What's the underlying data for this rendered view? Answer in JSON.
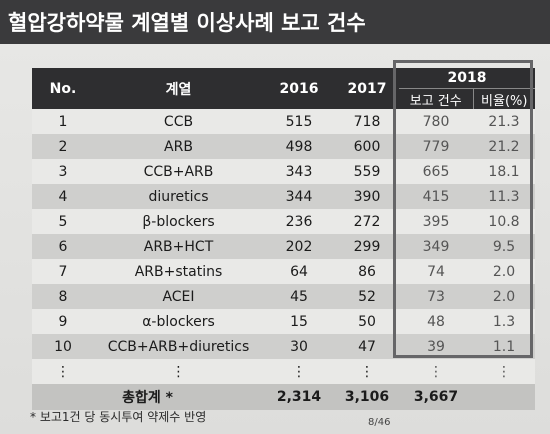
{
  "title": "혈압강하약물 계열별 이상사례 보고 건수",
  "table": {
    "headers": {
      "no": "No.",
      "class": "계열",
      "y2016": "2016",
      "y2017": "2017",
      "y2018": "2018",
      "reports": "보고 건수",
      "ratio": "비율(%)"
    },
    "rows": [
      {
        "no": "1",
        "class": "CCB",
        "v2016": "515",
        "v2017": "718",
        "reports": "780",
        "ratio": "21.3"
      },
      {
        "no": "2",
        "class": "ARB",
        "v2016": "498",
        "v2017": "600",
        "reports": "779",
        "ratio": "21.2"
      },
      {
        "no": "3",
        "class": "CCB+ARB",
        "v2016": "343",
        "v2017": "559",
        "reports": "665",
        "ratio": "18.1"
      },
      {
        "no": "4",
        "class": "diuretics",
        "v2016": "344",
        "v2017": "390",
        "reports": "415",
        "ratio": "11.3"
      },
      {
        "no": "5",
        "class": "β-blockers",
        "v2016": "236",
        "v2017": "272",
        "reports": "395",
        "ratio": "10.8"
      },
      {
        "no": "6",
        "class": "ARB+HCT",
        "v2016": "202",
        "v2017": "299",
        "reports": "349",
        "ratio": "9.5"
      },
      {
        "no": "7",
        "class": "ARB+statins",
        "v2016": "64",
        "v2017": "86",
        "reports": "74",
        "ratio": "2.0"
      },
      {
        "no": "8",
        "class": "ACEI",
        "v2016": "45",
        "v2017": "52",
        "reports": "73",
        "ratio": "2.0"
      },
      {
        "no": "9",
        "class": "α-blockers",
        "v2016": "15",
        "v2017": "50",
        "reports": "48",
        "ratio": "1.3"
      },
      {
        "no": "10",
        "class": "CCB+ARB+diuretics",
        "v2016": "30",
        "v2017": "47",
        "reports": "39",
        "ratio": "1.1"
      },
      {
        "no": "⋮",
        "class": "⋮",
        "v2016": "⋮",
        "v2017": "⋮",
        "reports": "⋮",
        "ratio": "⋮"
      }
    ],
    "total": {
      "label": "총합계 *",
      "v2016": "2,314",
      "v2017": "3,106",
      "reports": "3,667",
      "ratio": ""
    }
  },
  "footnote": "* 보고1건 당 동시투여 약제수 반영",
  "page": "8/46",
  "colors": {
    "header_bg": "#2e2e30",
    "title_bar": "#3a3a3c",
    "row_dark": "#cfcfcd",
    "row_light": "#e9e9e7"
  }
}
